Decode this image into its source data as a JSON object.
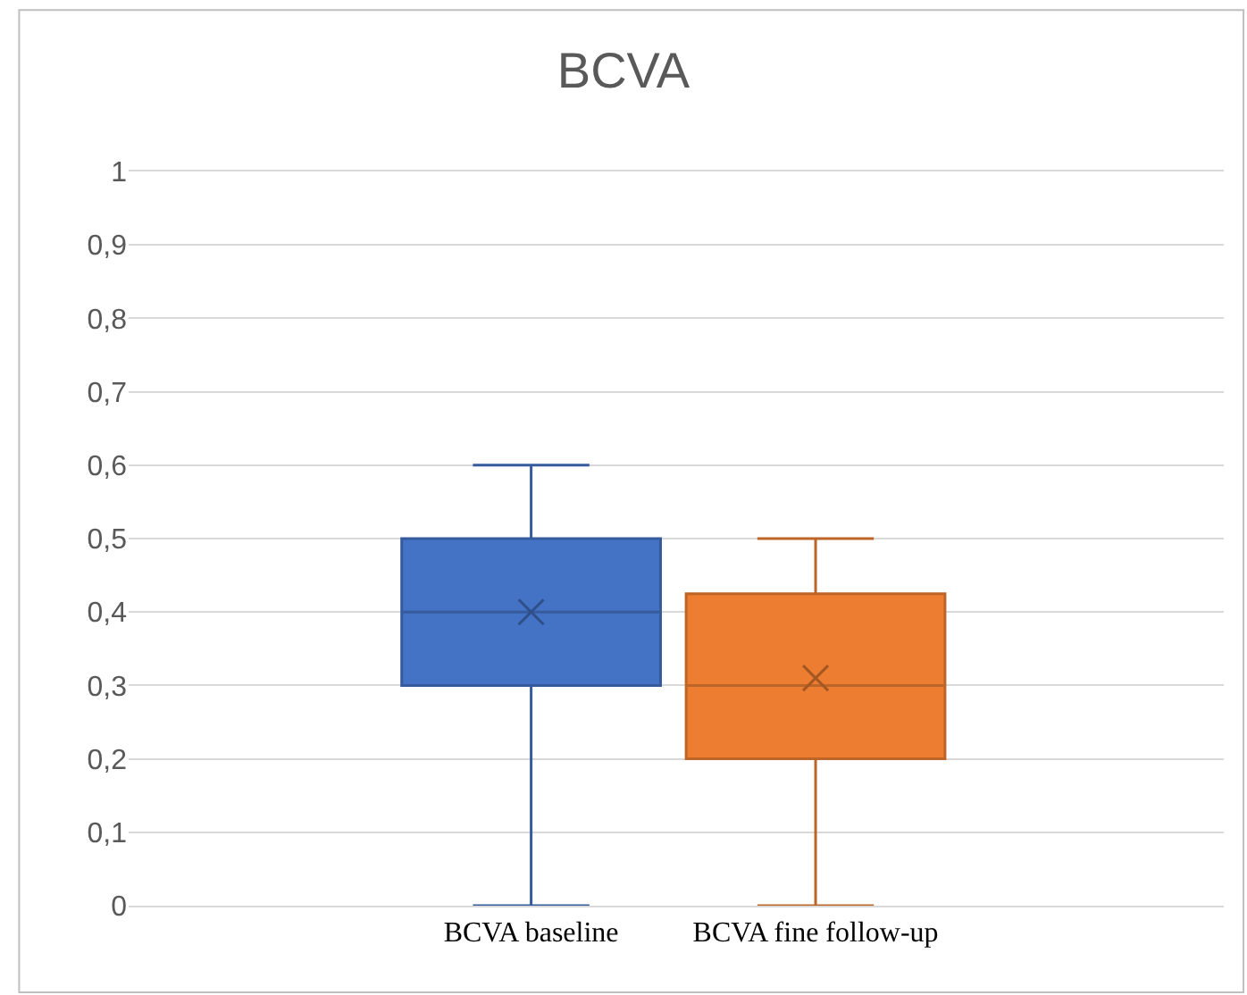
{
  "chart_data": {
    "type": "box",
    "title": "BCVA",
    "categories": [
      "BCVA baseline",
      "BCVA fine follow-up"
    ],
    "colors": [
      "#4472c4",
      "#ed7d31"
    ],
    "boxes": [
      {
        "low": 0,
        "q1": 0.3,
        "median": 0.4,
        "q3": 0.5,
        "high": 0.6,
        "mean": 0.4
      },
      {
        "low": 0,
        "q1": 0.2,
        "median": 0.3,
        "q3": 0.425,
        "high": 0.5,
        "mean": 0.31
      }
    ],
    "ylim": [
      0,
      1
    ],
    "yticks": [
      {
        "value": 0,
        "label": "0"
      },
      {
        "value": 0.1,
        "label": "0,1"
      },
      {
        "value": 0.2,
        "label": "0,2"
      },
      {
        "value": 0.3,
        "label": "0,3"
      },
      {
        "value": 0.4,
        "label": "0,4"
      },
      {
        "value": 0.5,
        "label": "0,5"
      },
      {
        "value": 0.6,
        "label": "0,6"
      },
      {
        "value": 0.7,
        "label": "0,7"
      },
      {
        "value": 0.8,
        "label": "0,8"
      },
      {
        "value": 0.9,
        "label": "0,9"
      },
      {
        "value": 1,
        "label": "1"
      }
    ],
    "grid": "y"
  }
}
